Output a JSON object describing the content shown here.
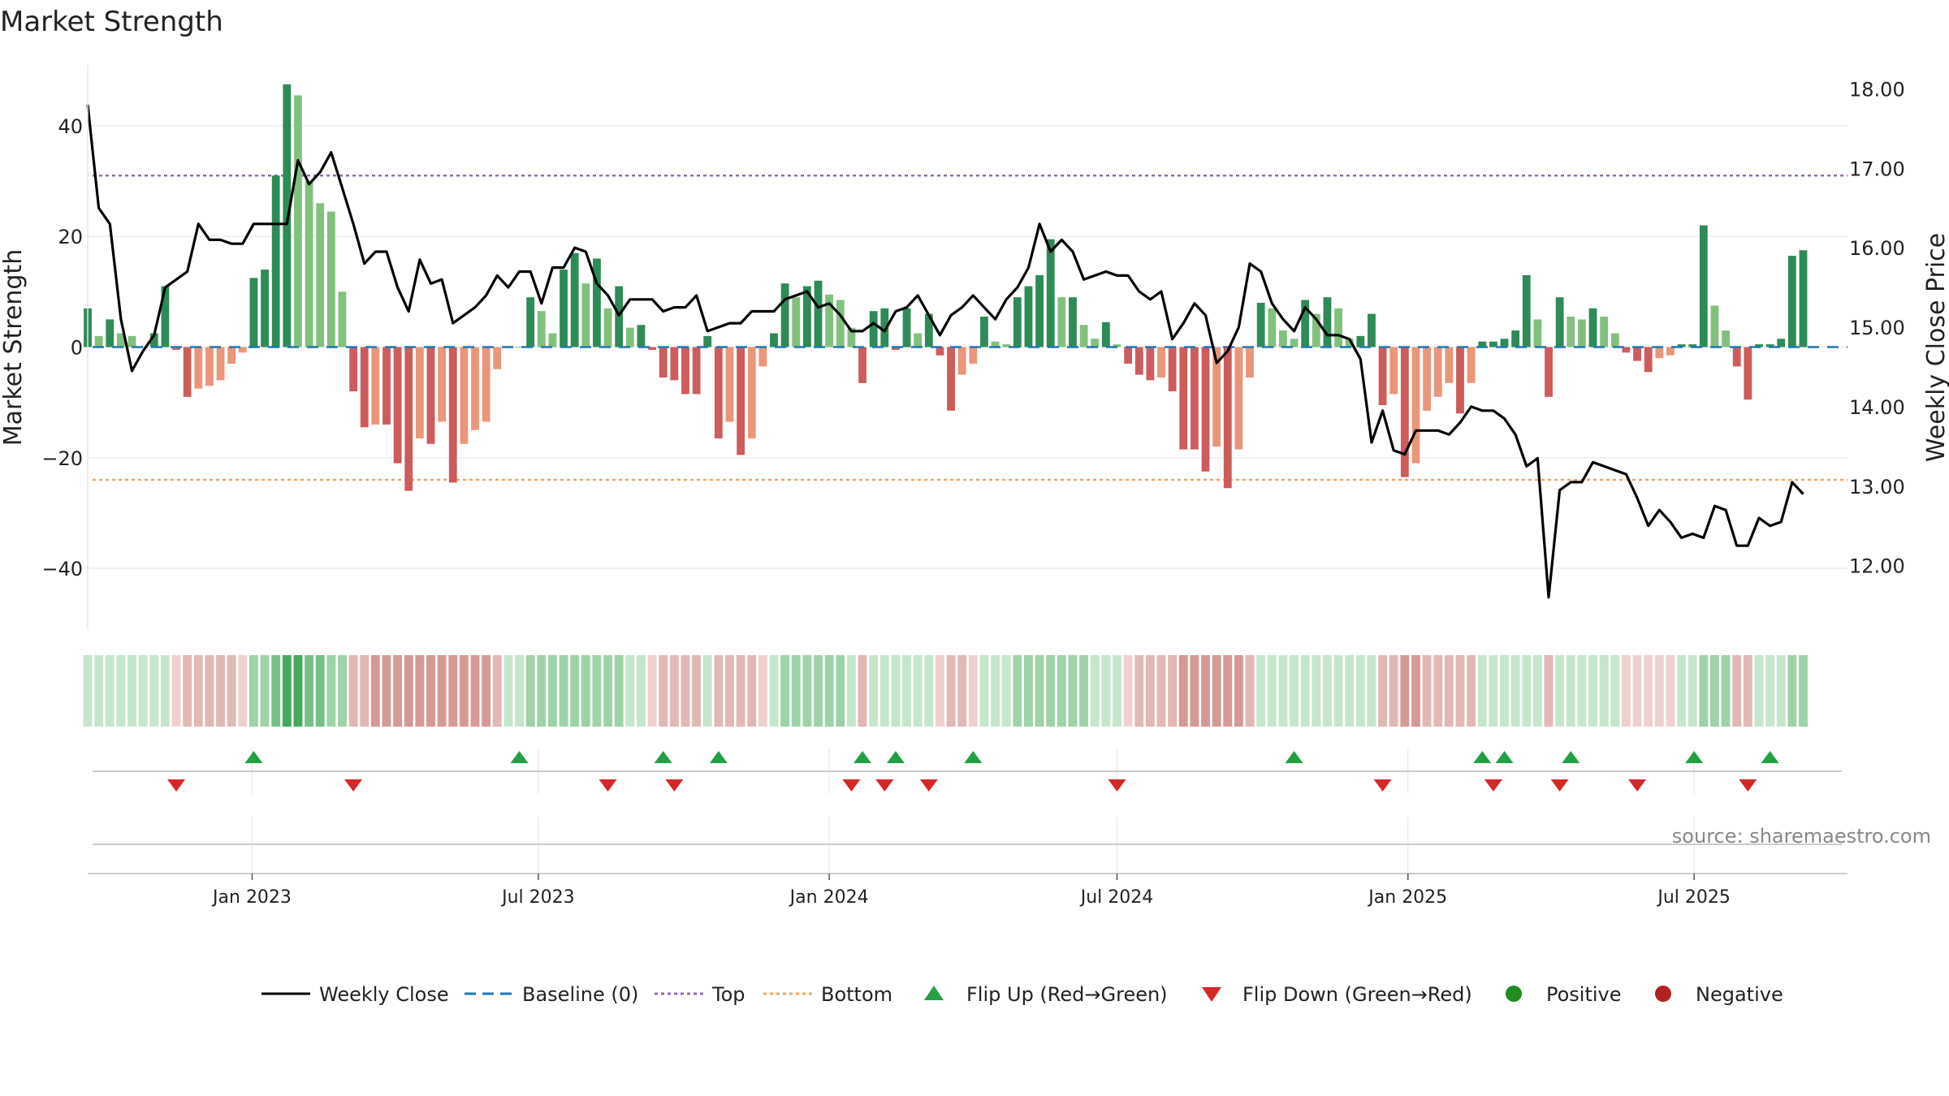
{
  "chart_data": {
    "type": "bar",
    "title": "Market Strength",
    "ylabel_left": "Market Strength",
    "ylabel_right": "Weekly Close Price",
    "source": "source: sharemaestro.com",
    "left_axis": {
      "ylim": [
        -51,
        51
      ],
      "ticks": [
        40,
        20,
        0,
        -20,
        -40
      ],
      "tick_labels": [
        "40",
        "20",
        "0",
        "−20",
        "−40"
      ]
    },
    "right_axis": {
      "ylim": [
        11.2,
        18.3
      ],
      "ticks": [
        18,
        17,
        16,
        15,
        14,
        13,
        12
      ],
      "tick_labels": [
        "18.00",
        "17.00",
        "16.00",
        "15.00",
        "14.00",
        "13.00",
        "12.00"
      ]
    },
    "x_axis": {
      "start": "2022-09-19",
      "end": "2025-10-06",
      "ticks": [
        {
          "date": "2023-01-01",
          "label": "Jan 2023"
        },
        {
          "date": "2023-07-01",
          "label": "Jul 2023"
        },
        {
          "date": "2024-01-01",
          "label": "Jan 2024"
        },
        {
          "date": "2024-07-01",
          "label": "Jul 2024"
        },
        {
          "date": "2025-01-01",
          "label": "Jan 2025"
        },
        {
          "date": "2025-07-01",
          "label": "Jul 2025"
        }
      ]
    },
    "reference_lines": {
      "top": 31,
      "bottom": -24,
      "baseline": 0
    },
    "strength": {
      "start_date": "2022-09-19",
      "interval_days": 7,
      "values": [
        7,
        2,
        5,
        2.5,
        2,
        0,
        2.5,
        11,
        -0.5,
        -9,
        -7.5,
        -7,
        -6,
        -3,
        -1,
        12.5,
        14,
        31,
        47.5,
        45.5,
        30,
        26,
        24.5,
        10,
        -8,
        -14.5,
        -14,
        -14,
        -21,
        -26,
        -16.5,
        -17.5,
        -13.5,
        -24.5,
        -17.5,
        -15,
        -13.5,
        -4,
        0,
        0,
        9,
        6.5,
        2.5,
        14,
        17,
        11.5,
        16,
        7,
        11,
        3.5,
        4,
        -0.5,
        -5.5,
        -6,
        -8.5,
        -8.5,
        2,
        -16.5,
        -13.5,
        -19.5,
        -16.5,
        -3.5,
        2.5,
        11.5,
        9,
        11,
        12,
        9.5,
        8.5,
        3.5,
        -6.5,
        6.5,
        7,
        -0.5,
        7,
        2.5,
        6,
        -1.5,
        -11.5,
        -5,
        -3,
        5.5,
        1,
        0.5,
        9,
        11,
        13,
        19.5,
        9,
        9,
        4,
        1.5,
        4.5,
        0.5,
        -3,
        -5,
        -6,
        -5.5,
        -8,
        -18.5,
        -18.5,
        -22.5,
        -18,
        -25.5,
        -18.5,
        -5.5,
        8,
        7,
        3,
        1.5,
        8.5,
        6,
        9,
        7,
        1.5,
        2,
        6,
        -10.5,
        -8.5,
        -23.5,
        -21,
        -11.5,
        -9,
        -6.5,
        -12,
        -6.5,
        1,
        1,
        1.5,
        3,
        13,
        5,
        -9,
        9,
        5.5,
        5,
        7,
        5.5,
        2.5,
        -1,
        -2.5,
        -4.5,
        -2,
        -1.5,
        0.5,
        0.5,
        22,
        7.5,
        3,
        -3.5,
        -9.5,
        0.5,
        0.5,
        1.5,
        16.5,
        17.5
      ]
    },
    "weekly_close": {
      "start_date": "2022-09-19",
      "interval_days": 7,
      "values": [
        17.8,
        16.5,
        16.3,
        15.1,
        14.45,
        14.7,
        14.9,
        15.5,
        15.6,
        15.7,
        16.3,
        16.1,
        16.1,
        16.05,
        16.05,
        16.3,
        16.3,
        16.3,
        16.3,
        17.1,
        16.8,
        16.95,
        17.2,
        16.75,
        16.3,
        15.8,
        15.95,
        15.95,
        15.5,
        15.2,
        15.85,
        15.55,
        15.6,
        15.05,
        15.15,
        15.25,
        15.4,
        15.65,
        15.5,
        15.7,
        15.7,
        15.3,
        15.75,
        15.75,
        16.0,
        15.95,
        15.55,
        15.4,
        15.15,
        15.35,
        15.35,
        15.35,
        15.2,
        15.25,
        15.25,
        15.4,
        14.95,
        15.0,
        15.05,
        15.05,
        15.2,
        15.2,
        15.2,
        15.35,
        15.4,
        15.45,
        15.25,
        15.3,
        15.15,
        14.95,
        14.95,
        15.05,
        14.95,
        15.2,
        15.25,
        15.4,
        15.15,
        14.9,
        15.15,
        15.25,
        15.4,
        15.25,
        15.1,
        15.35,
        15.5,
        15.75,
        16.3,
        15.95,
        16.1,
        15.95,
        15.6,
        15.65,
        15.7,
        15.65,
        15.65,
        15.45,
        15.35,
        15.45,
        14.85,
        15.05,
        15.3,
        15.15,
        14.55,
        14.7,
        15.0,
        15.8,
        15.7,
        15.3,
        15.1,
        14.95,
        15.25,
        15.1,
        14.9,
        14.9,
        14.85,
        14.6,
        13.55,
        13.95,
        13.45,
        13.4,
        13.7,
        13.7,
        13.7,
        13.65,
        13.8,
        14.0,
        13.95,
        13.95,
        13.85,
        13.65,
        13.25,
        13.35,
        11.6,
        12.95,
        13.05,
        13.05,
        13.3,
        13.25,
        13.2,
        13.15,
        12.85,
        12.5,
        12.7,
        12.55,
        12.35,
        12.4,
        12.35,
        12.75,
        12.7,
        12.25,
        12.25,
        12.6,
        12.5,
        12.55,
        13.05,
        12.9
      ]
    },
    "heat_strip": {
      "start_date": "2022-09-19",
      "interval_days": 7,
      "levels": [
        1,
        1,
        1,
        1,
        1,
        1,
        1,
        1,
        -1,
        -2,
        -2,
        -2,
        -2,
        -2,
        -1,
        2,
        2,
        3,
        4,
        4,
        3,
        3,
        2,
        2,
        -2,
        -2,
        -3,
        -3,
        -3,
        -3,
        -3,
        -3,
        -3,
        -3,
        -3,
        -3,
        -3,
        -2,
        1,
        1,
        2,
        2,
        2,
        2,
        2,
        2,
        2,
        2,
        2,
        1,
        1,
        -1,
        -2,
        -2,
        -2,
        -2,
        1,
        -2,
        -2,
        -2,
        -2,
        -1,
        1,
        2,
        2,
        2,
        2,
        2,
        2,
        1,
        -2,
        1,
        1,
        1,
        1,
        1,
        1,
        -1,
        -2,
        -2,
        -1,
        1,
        1,
        1,
        2,
        2,
        2,
        2,
        2,
        2,
        2,
        1,
        1,
        1,
        -1,
        -2,
        -2,
        -2,
        -2,
        -3,
        -3,
        -3,
        -3,
        -3,
        -3,
        -2,
        1,
        1,
        1,
        1,
        1,
        1,
        1,
        1,
        1,
        1,
        1,
        -2,
        -2,
        -3,
        -3,
        -2,
        -2,
        -2,
        -2,
        -2,
        1,
        1,
        1,
        1,
        1,
        1,
        -2,
        1,
        1,
        1,
        1,
        1,
        1,
        -1,
        -1,
        -1,
        -1,
        -1,
        1,
        1,
        2,
        2,
        2,
        -2,
        -2,
        1,
        1,
        1,
        2,
        2
      ],
      "colors": {
        "-3": "#d59a96",
        "-2": "#e2b8b5",
        "-1": "#eed1cf",
        "1": "#c6e6cc",
        "2": "#9ed3a8",
        "3": "#77c188",
        "4": "#46a85c"
      }
    },
    "flip_up_dates": [
      "2023-01-02",
      "2023-06-19",
      "2023-09-18",
      "2023-10-23",
      "2024-01-22",
      "2024-02-12",
      "2024-04-01",
      "2024-10-21",
      "2025-02-17",
      "2025-03-03",
      "2025-04-14",
      "2025-07-01",
      "2025-08-18"
    ],
    "flip_down_dates": [
      "2022-11-14",
      "2023-03-06",
      "2023-08-14",
      "2023-09-25",
      "2024-01-15",
      "2024-02-05",
      "2024-03-04",
      "2024-07-01",
      "2024-12-16",
      "2025-02-24",
      "2025-04-07",
      "2025-05-26",
      "2025-08-04"
    ],
    "colors": {
      "strong_green": "#2e8b57",
      "light_green": "#82c07e",
      "strong_red": "#cd5c5c",
      "light_red": "#e9967a",
      "price_line": "#000000",
      "baseline": "#1f77b4",
      "top_line": "#9467bd",
      "bottom_line": "#f4a460",
      "flip_up": "#22a045",
      "flip_down": "#d62728",
      "positive": "#228b22",
      "negative": "#b22222"
    },
    "legend": [
      {
        "label": "Weekly Close",
        "symbol": "solid-line"
      },
      {
        "label": "Baseline (0)",
        "symbol": "dashed-line"
      },
      {
        "label": "Top",
        "symbol": "dotted-line"
      },
      {
        "label": "Bottom",
        "symbol": "dotted-line"
      },
      {
        "label": "Flip Up (Red→Green)",
        "symbol": "triangle-up"
      },
      {
        "label": "Flip Down (Green→Red)",
        "symbol": "triangle-down"
      },
      {
        "label": "Positive",
        "symbol": "circle"
      },
      {
        "label": "Negative",
        "symbol": "circle"
      }
    ]
  }
}
